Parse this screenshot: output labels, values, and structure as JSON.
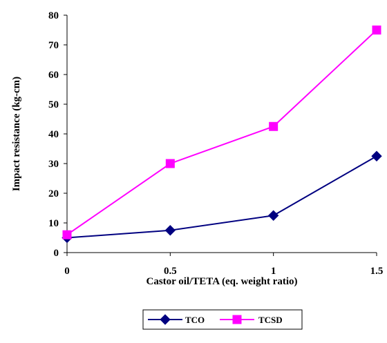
{
  "chart_data": {
    "type": "line",
    "title": "",
    "xlabel": "Castor oil/TETA (eq. weight ratio)",
    "ylabel": "Impact resistance (kg-cm)",
    "x": [
      0,
      0.5,
      1,
      1.5
    ],
    "x_tick_labels": [
      "0",
      "0.5",
      "1",
      "1.5"
    ],
    "xlim": [
      0,
      1.5
    ],
    "ylim": [
      0,
      80
    ],
    "y_ticks": [
      0,
      10,
      20,
      30,
      40,
      50,
      60,
      70,
      80
    ],
    "y_tick_labels": [
      "0",
      "10",
      "20",
      "30",
      "40",
      "50",
      "60",
      "70",
      "80"
    ],
    "grid": false,
    "legend_position": "bottom-center",
    "series": [
      {
        "name": "TCO",
        "values": [
          5,
          7.5,
          12.5,
          32.5
        ],
        "color": "#000080",
        "marker": "diamond"
      },
      {
        "name": "TCSD",
        "values": [
          6,
          30,
          42.5,
          75
        ],
        "color": "#ff00ff",
        "marker": "square"
      }
    ]
  }
}
